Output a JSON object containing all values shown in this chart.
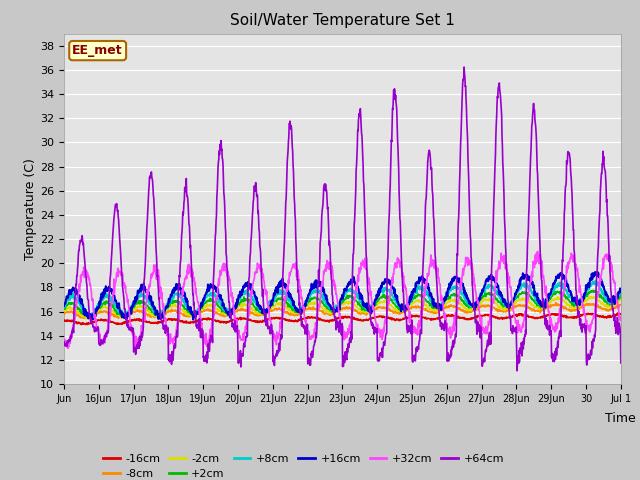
{
  "title": "Soil/Water Temperature Set 1",
  "xlabel": "Time",
  "ylabel": "Temperature (C)",
  "ylim": [
    10,
    39
  ],
  "yticks": [
    10,
    12,
    14,
    16,
    18,
    20,
    22,
    24,
    26,
    28,
    30,
    32,
    34,
    36,
    38
  ],
  "fig_facecolor": "#c8c8c8",
  "ax_facecolor": "#e4e4e4",
  "grid_color": "#ffffff",
  "annotation_text": "EE_met",
  "annotation_bg": "#ffffcc",
  "annotation_border": "#aa6600",
  "annotation_text_color": "#880000",
  "series": [
    {
      "label": "-16cm",
      "color": "#dd0000",
      "linewidth": 1.2,
      "zorder": 3
    },
    {
      "label": "-8cm",
      "color": "#ff8800",
      "linewidth": 1.2,
      "zorder": 3
    },
    {
      "label": "-2cm",
      "color": "#dddd00",
      "linewidth": 1.2,
      "zorder": 3
    },
    {
      "label": "+2cm",
      "color": "#00bb00",
      "linewidth": 1.2,
      "zorder": 3
    },
    {
      "label": "+8cm",
      "color": "#00cccc",
      "linewidth": 1.5,
      "zorder": 4
    },
    {
      "label": "+16cm",
      "color": "#0000cc",
      "linewidth": 1.5,
      "zorder": 5
    },
    {
      "label": "+32cm",
      "color": "#ff44ff",
      "linewidth": 1.2,
      "zorder": 6
    },
    {
      "label": "+64cm",
      "color": "#9900cc",
      "linewidth": 1.2,
      "zorder": 7
    }
  ],
  "num_points": 1440,
  "days": 16,
  "tick_labels": [
    "Jun",
    "16Jun",
    "17Jun",
    "18Jun",
    "19Jun",
    "20Jun",
    "21Jun",
    "22Jun",
    "23Jun",
    "24Jun",
    "25Jun",
    "26Jun",
    "27Jun",
    "28Jun",
    "29Jun",
    "30",
    "Jul 1"
  ],
  "legend_ncol_row1": 6,
  "legend_ncol_row2": 2
}
